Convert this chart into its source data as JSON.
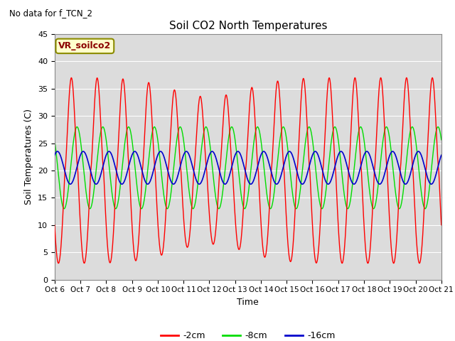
{
  "title": "Soil CO2 North Temperatures",
  "subtitle": "No data for f_TCN_2",
  "xlabel": "Time",
  "ylabel": "Soil Temperatures (C)",
  "box_label": "VR_soilco2",
  "ylim": [
    0,
    45
  ],
  "background_color": "#ffffff",
  "plot_bg_color": "#dcdcdc",
  "legend_entries": [
    "-2cm",
    "-8cm",
    "-16cm"
  ],
  "line_colors": [
    "#ff0000",
    "#00dd00",
    "#0000cc"
  ],
  "grid_color": "#ffffff",
  "yticks": [
    0,
    5,
    10,
    15,
    20,
    25,
    30,
    35,
    40,
    45
  ],
  "xtick_days": [
    6,
    7,
    8,
    9,
    10,
    11,
    12,
    13,
    14,
    15,
    16,
    17,
    18,
    19,
    20,
    21
  ]
}
